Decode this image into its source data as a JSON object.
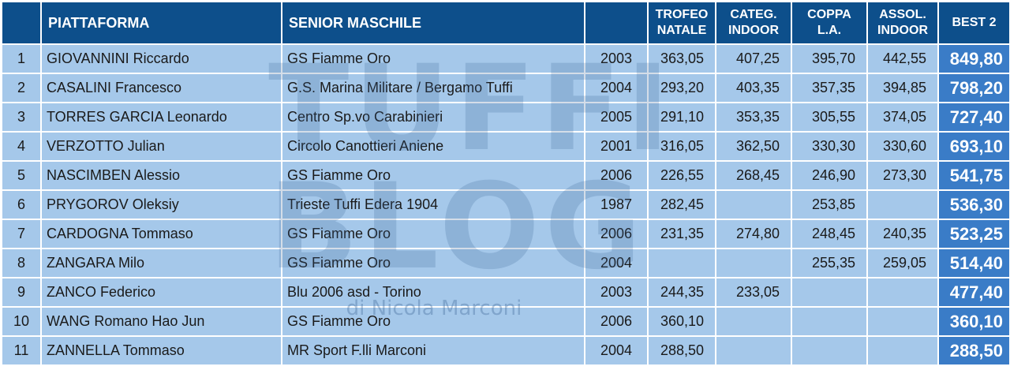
{
  "header": {
    "col_piattaforma": "PIATTAFORMA",
    "col_category": "SENIOR MASCHILE",
    "col_trofeo_line1": "TROFEO",
    "col_trofeo_line2": "NATALE",
    "col_categ_line1": "CATEG.",
    "col_categ_line2": "INDOOR",
    "col_coppa_line1": "COPPA",
    "col_coppa_line2": "L.A.",
    "col_assol_line1": "ASSOL.",
    "col_assol_line2": "INDOOR",
    "col_best": "BEST 2"
  },
  "watermark": {
    "line1": "TUFFI",
    "line2": "BLOG",
    "line3": "di Nicola Marconi"
  },
  "rows": [
    {
      "rank": "1",
      "name": "GIOVANNINI Riccardo",
      "club": "GS Fiamme Oro",
      "year": "2003",
      "trofeo": "363,05",
      "categ": "407,25",
      "coppa": "395,70",
      "assol": "442,55",
      "best": "849,80"
    },
    {
      "rank": "2",
      "name": "CASALINI Francesco",
      "club": "G.S. Marina Militare / Bergamo Tuffi",
      "year": "2004",
      "trofeo": "293,20",
      "categ": "403,35",
      "coppa": "357,35",
      "assol": "394,85",
      "best": "798,20"
    },
    {
      "rank": "3",
      "name": "TORRES GARCIA Leonardo",
      "club": "Centro Sp.vo Carabinieri",
      "year": "2005",
      "trofeo": "291,10",
      "categ": "353,35",
      "coppa": "305,55",
      "assol": "374,05",
      "best": "727,40"
    },
    {
      "rank": "4",
      "name": "VERZOTTO Julian",
      "club": "Circolo Canottieri Aniene",
      "year": "2001",
      "trofeo": "316,05",
      "categ": "362,50",
      "coppa": "330,30",
      "assol": "330,60",
      "best": "693,10"
    },
    {
      "rank": "5",
      "name": "NASCIMBEN Alessio",
      "club": "GS Fiamme Oro",
      "year": "2006",
      "trofeo": "226,55",
      "categ": "268,45",
      "coppa": "246,90",
      "assol": "273,30",
      "best": "541,75"
    },
    {
      "rank": "6",
      "name": "PRYGOROV Oleksiy",
      "club": "Trieste Tuffi Edera 1904",
      "year": "1987",
      "trofeo": "282,45",
      "categ": "",
      "coppa": "253,85",
      "assol": "",
      "best": "536,30"
    },
    {
      "rank": "7",
      "name": "CARDOGNA Tommaso",
      "club": "GS Fiamme Oro",
      "year": "2006",
      "trofeo": "231,35",
      "categ": "274,80",
      "coppa": "248,45",
      "assol": "240,35",
      "best": "523,25"
    },
    {
      "rank": "8",
      "name": "ZANGARA Milo",
      "club": "GS Fiamme Oro",
      "year": "2004",
      "trofeo": "",
      "categ": "",
      "coppa": "255,35",
      "assol": "259,05",
      "best": "514,40"
    },
    {
      "rank": "9",
      "name": "ZANCO Federico",
      "club": "Blu 2006 asd - Torino",
      "year": "2003",
      "trofeo": "244,35",
      "categ": "233,05",
      "coppa": "",
      "assol": "",
      "best": "477,40"
    },
    {
      "rank": "10",
      "name": "WANG Romano Hao Jun",
      "club": "GS Fiamme Oro",
      "year": "2006",
      "trofeo": "360,10",
      "categ": "",
      "coppa": "",
      "assol": "",
      "best": "360,10"
    },
    {
      "rank": "11",
      "name": "ZANNELLA Tommaso",
      "club": "MR Sport F.lli Marconi",
      "year": "2004",
      "trofeo": "288,50",
      "categ": "",
      "coppa": "",
      "assol": "",
      "best": "288,50"
    }
  ]
}
